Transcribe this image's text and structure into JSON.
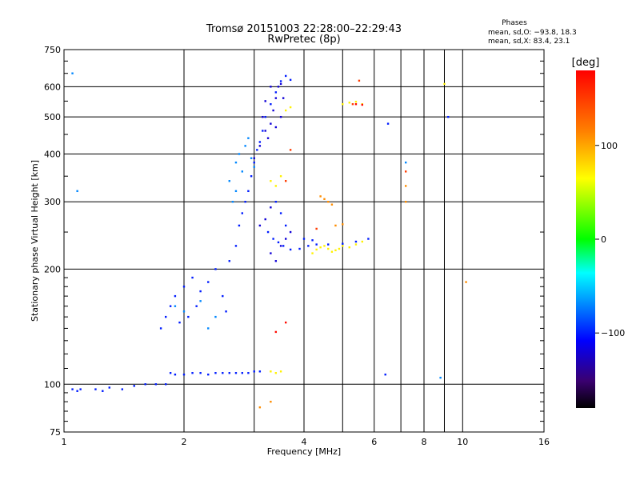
{
  "chart_data": {
    "type": "scatter",
    "title": "Tromsø 20151003 22:28:00–22:29:43",
    "subtitle": "RwPretec (8p)",
    "xlabel": "Frequency [MHz]",
    "ylabel": "Stationary phase Virtual Height [km]",
    "x_scale": "log2",
    "y_scale": "log",
    "xlim": [
      1,
      16
    ],
    "ylim": [
      75,
      750
    ],
    "x_ticks": [
      1,
      2,
      4,
      8,
      16
    ],
    "x_tick_labels": [
      "1",
      "2",
      "4",
      "8",
      "16"
    ],
    "x_minor_lines": [
      6,
      10
    ],
    "x_minor_labels": [
      "6",
      "10"
    ],
    "y_ticks": [
      75,
      100,
      200,
      300,
      400,
      500,
      600,
      750
    ],
    "y_tick_labels": [
      "75",
      "100",
      "200",
      "300",
      "400",
      "500",
      "600",
      "750"
    ],
    "grid": true,
    "phase_info": {
      "title": "Phases",
      "line1": "mean, sd,O: −93.8, 18.3",
      "line2": "mean, sd,X: 83.4, 23.1"
    },
    "colorbar": {
      "label": "[deg]",
      "range": [
        -180,
        180
      ],
      "ticks": [
        100,
        0,
        -100
      ],
      "tick_labels": [
        "100",
        "0",
        "−100"
      ]
    },
    "series": [
      {
        "phase_deg": -100,
        "points": [
          [
            1.05,
            97
          ],
          [
            1.08,
            96
          ],
          [
            1.1,
            97
          ],
          [
            1.2,
            97
          ],
          [
            1.25,
            96
          ],
          [
            1.3,
            98
          ],
          [
            1.4,
            97
          ],
          [
            1.5,
            99
          ],
          [
            1.6,
            100
          ],
          [
            1.7,
            100
          ],
          [
            1.8,
            100
          ],
          [
            1.85,
            107
          ],
          [
            1.9,
            106
          ],
          [
            2.0,
            106
          ],
          [
            2.1,
            107
          ],
          [
            2.2,
            107
          ],
          [
            2.3,
            106
          ],
          [
            2.4,
            107
          ],
          [
            2.5,
            107
          ],
          [
            2.6,
            107
          ],
          [
            2.7,
            107
          ],
          [
            2.8,
            107
          ],
          [
            2.9,
            107
          ],
          [
            3.0,
            108
          ],
          [
            3.1,
            108
          ],
          [
            1.75,
            140
          ],
          [
            1.8,
            150
          ],
          [
            1.85,
            160
          ],
          [
            1.9,
            170
          ],
          [
            1.95,
            145
          ],
          [
            2.0,
            180
          ],
          [
            2.05,
            150
          ],
          [
            2.1,
            190
          ],
          [
            2.15,
            160
          ],
          [
            2.2,
            175
          ],
          [
            2.3,
            185
          ],
          [
            2.4,
            200
          ],
          [
            2.5,
            170
          ],
          [
            2.55,
            155
          ],
          [
            2.6,
            210
          ],
          [
            2.7,
            230
          ],
          [
            2.75,
            260
          ],
          [
            2.8,
            280
          ],
          [
            2.85,
            300
          ],
          [
            2.9,
            320
          ],
          [
            2.95,
            350
          ],
          [
            3.0,
            380
          ],
          [
            3.05,
            410
          ],
          [
            3.1,
            430
          ],
          [
            3.15,
            460
          ],
          [
            3.2,
            500
          ],
          [
            3.3,
            540
          ],
          [
            3.4,
            580
          ],
          [
            3.5,
            620
          ],
          [
            3.6,
            640
          ],
          [
            3.7,
            625
          ],
          [
            3.25,
            250
          ],
          [
            3.35,
            240
          ],
          [
            3.45,
            235
          ],
          [
            3.55,
            230
          ],
          [
            3.7,
            225
          ],
          [
            3.9,
            226
          ],
          [
            4.1,
            230
          ],
          [
            4.3,
            232
          ],
          [
            4.6,
            232
          ],
          [
            5.0,
            233
          ],
          [
            5.4,
            236
          ],
          [
            5.8,
            240
          ],
          [
            6.4,
            106
          ],
          [
            6.5,
            480
          ],
          [
            9.2,
            500
          ],
          [
            3.4,
            300
          ],
          [
            3.5,
            280
          ],
          [
            3.6,
            260
          ],
          [
            4.0,
            240
          ],
          [
            4.2,
            238
          ]
        ]
      },
      {
        "phase_deg": -120,
        "points": [
          [
            3.0,
            390
          ],
          [
            3.1,
            420
          ],
          [
            3.2,
            460
          ],
          [
            3.3,
            480
          ],
          [
            3.35,
            520
          ],
          [
            3.4,
            560
          ],
          [
            3.45,
            600
          ],
          [
            3.5,
            610
          ],
          [
            3.55,
            560
          ],
          [
            3.3,
            600
          ],
          [
            3.2,
            550
          ],
          [
            3.15,
            500
          ],
          [
            3.25,
            440
          ],
          [
            3.4,
            470
          ],
          [
            3.5,
            500
          ],
          [
            3.3,
            220
          ],
          [
            3.4,
            210
          ],
          [
            3.5,
            230
          ],
          [
            3.6,
            240
          ],
          [
            3.7,
            250
          ],
          [
            3.2,
            270
          ],
          [
            3.3,
            290
          ],
          [
            3.1,
            260
          ]
        ]
      },
      {
        "phase_deg": -70,
        "points": [
          [
            2.7,
            380
          ],
          [
            2.75,
            400
          ],
          [
            2.8,
            360
          ],
          [
            2.85,
            420
          ],
          [
            2.9,
            440
          ],
          [
            2.95,
            390
          ],
          [
            3.0,
            370
          ],
          [
            2.6,
            340
          ],
          [
            2.65,
            300
          ],
          [
            2.7,
            320
          ],
          [
            1.05,
            650
          ],
          [
            1.08,
            320
          ],
          [
            2.4,
            150
          ],
          [
            2.3,
            140
          ],
          [
            2.2,
            165
          ],
          [
            2.0,
            155
          ],
          [
            1.9,
            160
          ],
          [
            8.8,
            104
          ],
          [
            7.2,
            380
          ]
        ]
      },
      {
        "phase_deg": 70,
        "points": [
          [
            3.3,
            108
          ],
          [
            3.4,
            107
          ],
          [
            3.5,
            108
          ],
          [
            3.3,
            340
          ],
          [
            3.4,
            330
          ],
          [
            3.5,
            350
          ],
          [
            3.6,
            520
          ],
          [
            3.7,
            530
          ],
          [
            4.2,
            220
          ],
          [
            4.3,
            225
          ],
          [
            4.4,
            228
          ],
          [
            4.5,
            230
          ],
          [
            4.6,
            226
          ],
          [
            4.7,
            222
          ],
          [
            4.8,
            224
          ],
          [
            4.9,
            226
          ],
          [
            5.0,
            230
          ],
          [
            5.2,
            228
          ],
          [
            5.4,
            232
          ],
          [
            5.6,
            236
          ],
          [
            5.0,
            540
          ],
          [
            5.2,
            545
          ],
          [
            5.4,
            548
          ],
          [
            5.6,
            540
          ],
          [
            9.0,
            610
          ]
        ]
      },
      {
        "phase_deg": 110,
        "points": [
          [
            4.4,
            310
          ],
          [
            4.5,
            305
          ],
          [
            4.6,
            300
          ],
          [
            4.7,
            295
          ],
          [
            4.8,
            260
          ],
          [
            5.0,
            262
          ],
          [
            3.1,
            87
          ],
          [
            3.3,
            90
          ],
          [
            7.2,
            330
          ],
          [
            7.2,
            300
          ],
          [
            10.2,
            185
          ]
        ]
      },
      {
        "phase_deg": 150,
        "points": [
          [
            3.6,
            340
          ],
          [
            4.3,
            255
          ],
          [
            5.5,
            622
          ],
          [
            5.3,
            540
          ],
          [
            3.7,
            410
          ],
          [
            7.2,
            360
          ]
        ]
      },
      {
        "phase_deg": 175,
        "points": [
          [
            3.4,
            137
          ],
          [
            3.6,
            145
          ],
          [
            5.4,
            540
          ],
          [
            5.6,
            538
          ]
        ]
      }
    ]
  }
}
